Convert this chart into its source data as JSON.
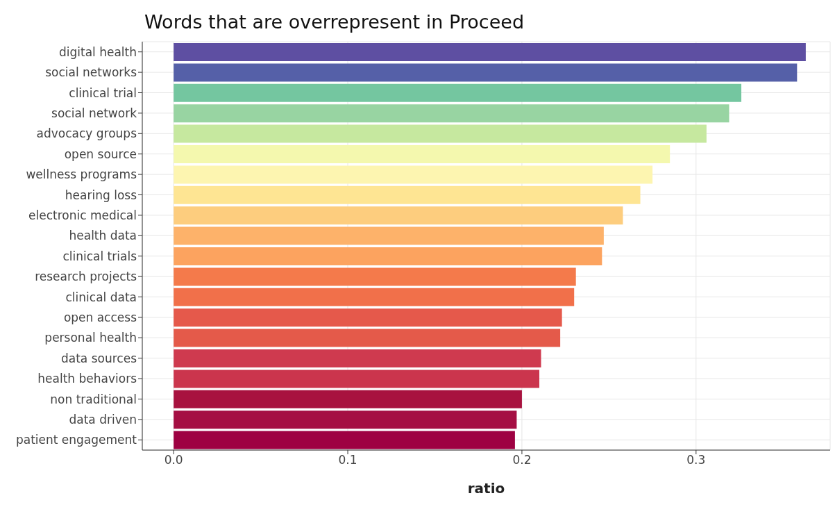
{
  "chart_data": {
    "type": "bar",
    "orientation": "horizontal",
    "title": "Words that are overrepresent in Proceed",
    "xlabel": "ratio",
    "categories": [
      "digital health",
      "social networks",
      "clinical trial",
      "social network",
      "advocacy groups",
      "open source",
      "wellness programs",
      "hearing loss",
      "electronic medical",
      "health data",
      "clinical trials",
      "research projects",
      "clinical data",
      "open access",
      "personal health",
      "data sources",
      "health behaviors",
      "non traditional",
      "data driven",
      "patient engagement"
    ],
    "values": [
      0.363,
      0.358,
      0.326,
      0.319,
      0.306,
      0.285,
      0.275,
      0.268,
      0.258,
      0.247,
      0.246,
      0.231,
      0.23,
      0.223,
      0.222,
      0.211,
      0.21,
      0.2,
      0.197,
      0.196
    ],
    "colors": [
      "#5e4fa2",
      "#5560a8",
      "#74c6a0",
      "#98d4a2",
      "#c6e89f",
      "#f4f8ae",
      "#fdf5b0",
      "#fee593",
      "#fdcd7e",
      "#fdb26a",
      "#fca35f",
      "#f47a4b",
      "#f1704a",
      "#e5594b",
      "#e45a4a",
      "#cf3a4f",
      "#cb354d",
      "#a8123f",
      "#a50f43",
      "#9e0142"
    ],
    "xlim": [
      -0.018,
      0.377
    ],
    "xticks": [
      {
        "value": 0,
        "label": "0.0"
      },
      {
        "value": 0.1,
        "label": "0.1"
      },
      {
        "value": 0.2,
        "label": "0.2"
      },
      {
        "value": 0.3,
        "label": "0.3"
      }
    ],
    "grid": true
  }
}
